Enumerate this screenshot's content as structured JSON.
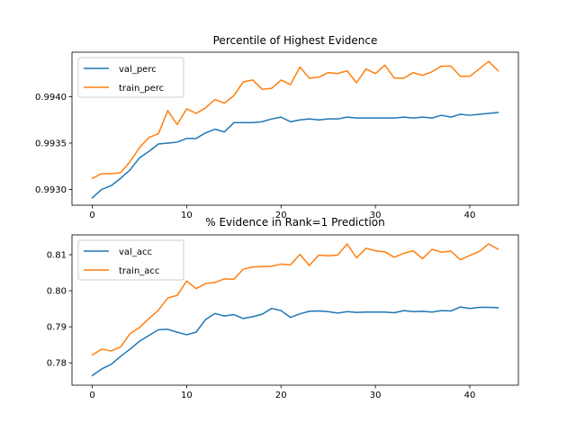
{
  "chart_data": [
    {
      "type": "line",
      "title": "Percentile of Highest Evidence",
      "xlabel": "",
      "ylabel": "",
      "xlim": [
        -2.15,
        45.15
      ],
      "ylim": [
        0.99283,
        0.99448
      ],
      "xticks": [
        0,
        10,
        20,
        30,
        40
      ],
      "xtick_labels": [
        "0",
        "10",
        "20",
        "30",
        "40"
      ],
      "yticks": [
        0.993,
        0.9935,
        0.994
      ],
      "ytick_labels": [
        "0.9930",
        "0.9935",
        "0.9940"
      ],
      "legend_position": "top-left",
      "grid": false,
      "x": [
        0,
        1,
        2,
        3,
        4,
        5,
        6,
        7,
        8,
        9,
        10,
        11,
        12,
        13,
        14,
        15,
        16,
        17,
        18,
        19,
        20,
        21,
        22,
        23,
        24,
        25,
        26,
        27,
        28,
        29,
        30,
        31,
        32,
        33,
        34,
        35,
        36,
        37,
        38,
        39,
        40,
        41,
        42,
        43
      ],
      "series": [
        {
          "name": "val_perc",
          "color": "#1f77b4",
          "values": [
            0.99291,
            0.993,
            0.99304,
            0.99312,
            0.99321,
            0.99334,
            0.99341,
            0.99349,
            0.9935,
            0.99351,
            0.99355,
            0.99355,
            0.99361,
            0.99365,
            0.99362,
            0.99372,
            0.99372,
            0.99372,
            0.99373,
            0.99376,
            0.99378,
            0.99373,
            0.99375,
            0.99376,
            0.99375,
            0.99376,
            0.99376,
            0.99378,
            0.99377,
            0.99377,
            0.99377,
            0.99377,
            0.99377,
            0.99378,
            0.99377,
            0.99378,
            0.99377,
            0.9938,
            0.99378,
            0.99381,
            0.9938,
            0.99381,
            0.99382,
            0.99383
          ]
        },
        {
          "name": "train_perc",
          "color": "#ff7f0e",
          "values": [
            0.99312,
            0.99317,
            0.99317,
            0.99318,
            0.9933,
            0.99345,
            0.99356,
            0.9936,
            0.99385,
            0.9937,
            0.99387,
            0.99382,
            0.99388,
            0.99397,
            0.99393,
            0.99401,
            0.99416,
            0.99418,
            0.99408,
            0.99409,
            0.99418,
            0.99413,
            0.99432,
            0.9942,
            0.99421,
            0.99426,
            0.99425,
            0.99428,
            0.99415,
            0.9943,
            0.99425,
            0.99434,
            0.9942,
            0.9942,
            0.99426,
            0.99423,
            0.99427,
            0.99433,
            0.99433,
            0.99422,
            0.99422,
            0.9943,
            0.99438,
            0.99428
          ]
        }
      ]
    },
    {
      "type": "line",
      "title": "% Evidence in Rank=1 Prediction",
      "xlabel": "",
      "ylabel": "",
      "xlim": [
        -2.15,
        45.15
      ],
      "ylim": [
        0.7738,
        0.8155
      ],
      "xticks": [
        0,
        10,
        20,
        30,
        40
      ],
      "xtick_labels": [
        "0",
        "10",
        "20",
        "30",
        "40"
      ],
      "yticks": [
        0.78,
        0.79,
        0.8,
        0.81
      ],
      "ytick_labels": [
        "0.78",
        "0.79",
        "0.80",
        "0.81"
      ],
      "legend_position": "top-left",
      "grid": false,
      "x": [
        0,
        1,
        2,
        3,
        4,
        5,
        6,
        7,
        8,
        9,
        10,
        11,
        12,
        13,
        14,
        15,
        16,
        17,
        18,
        19,
        20,
        21,
        22,
        23,
        24,
        25,
        26,
        27,
        28,
        29,
        30,
        31,
        32,
        33,
        34,
        35,
        36,
        37,
        38,
        39,
        40,
        41,
        42,
        43
      ],
      "series": [
        {
          "name": "val_acc",
          "color": "#1f77b4",
          "values": [
            0.7765,
            0.7783,
            0.7796,
            0.7818,
            0.7838,
            0.786,
            0.7876,
            0.7892,
            0.7893,
            0.7885,
            0.7878,
            0.7885,
            0.792,
            0.7937,
            0.793,
            0.7934,
            0.7923,
            0.7928,
            0.7935,
            0.7951,
            0.7945,
            0.7926,
            0.7936,
            0.7943,
            0.7944,
            0.7942,
            0.7938,
            0.7942,
            0.794,
            0.7941,
            0.7941,
            0.7941,
            0.7939,
            0.7945,
            0.7942,
            0.7943,
            0.7941,
            0.7945,
            0.7944,
            0.7955,
            0.7951,
            0.7954,
            0.7954,
            0.7953
          ]
        },
        {
          "name": "train_acc",
          "color": "#ff7f0e",
          "values": [
            0.7822,
            0.7838,
            0.7833,
            0.7844,
            0.7881,
            0.7898,
            0.7923,
            0.7946,
            0.798,
            0.7987,
            0.8027,
            0.8006,
            0.802,
            0.8023,
            0.8033,
            0.8032,
            0.806,
            0.8066,
            0.8067,
            0.8068,
            0.8074,
            0.8072,
            0.8101,
            0.807,
            0.8099,
            0.8097,
            0.8099,
            0.813,
            0.8091,
            0.8118,
            0.8111,
            0.8108,
            0.8093,
            0.8104,
            0.8111,
            0.8089,
            0.8115,
            0.8107,
            0.811,
            0.8086,
            0.8098,
            0.8109,
            0.813,
            0.8115
          ]
        }
      ]
    }
  ]
}
